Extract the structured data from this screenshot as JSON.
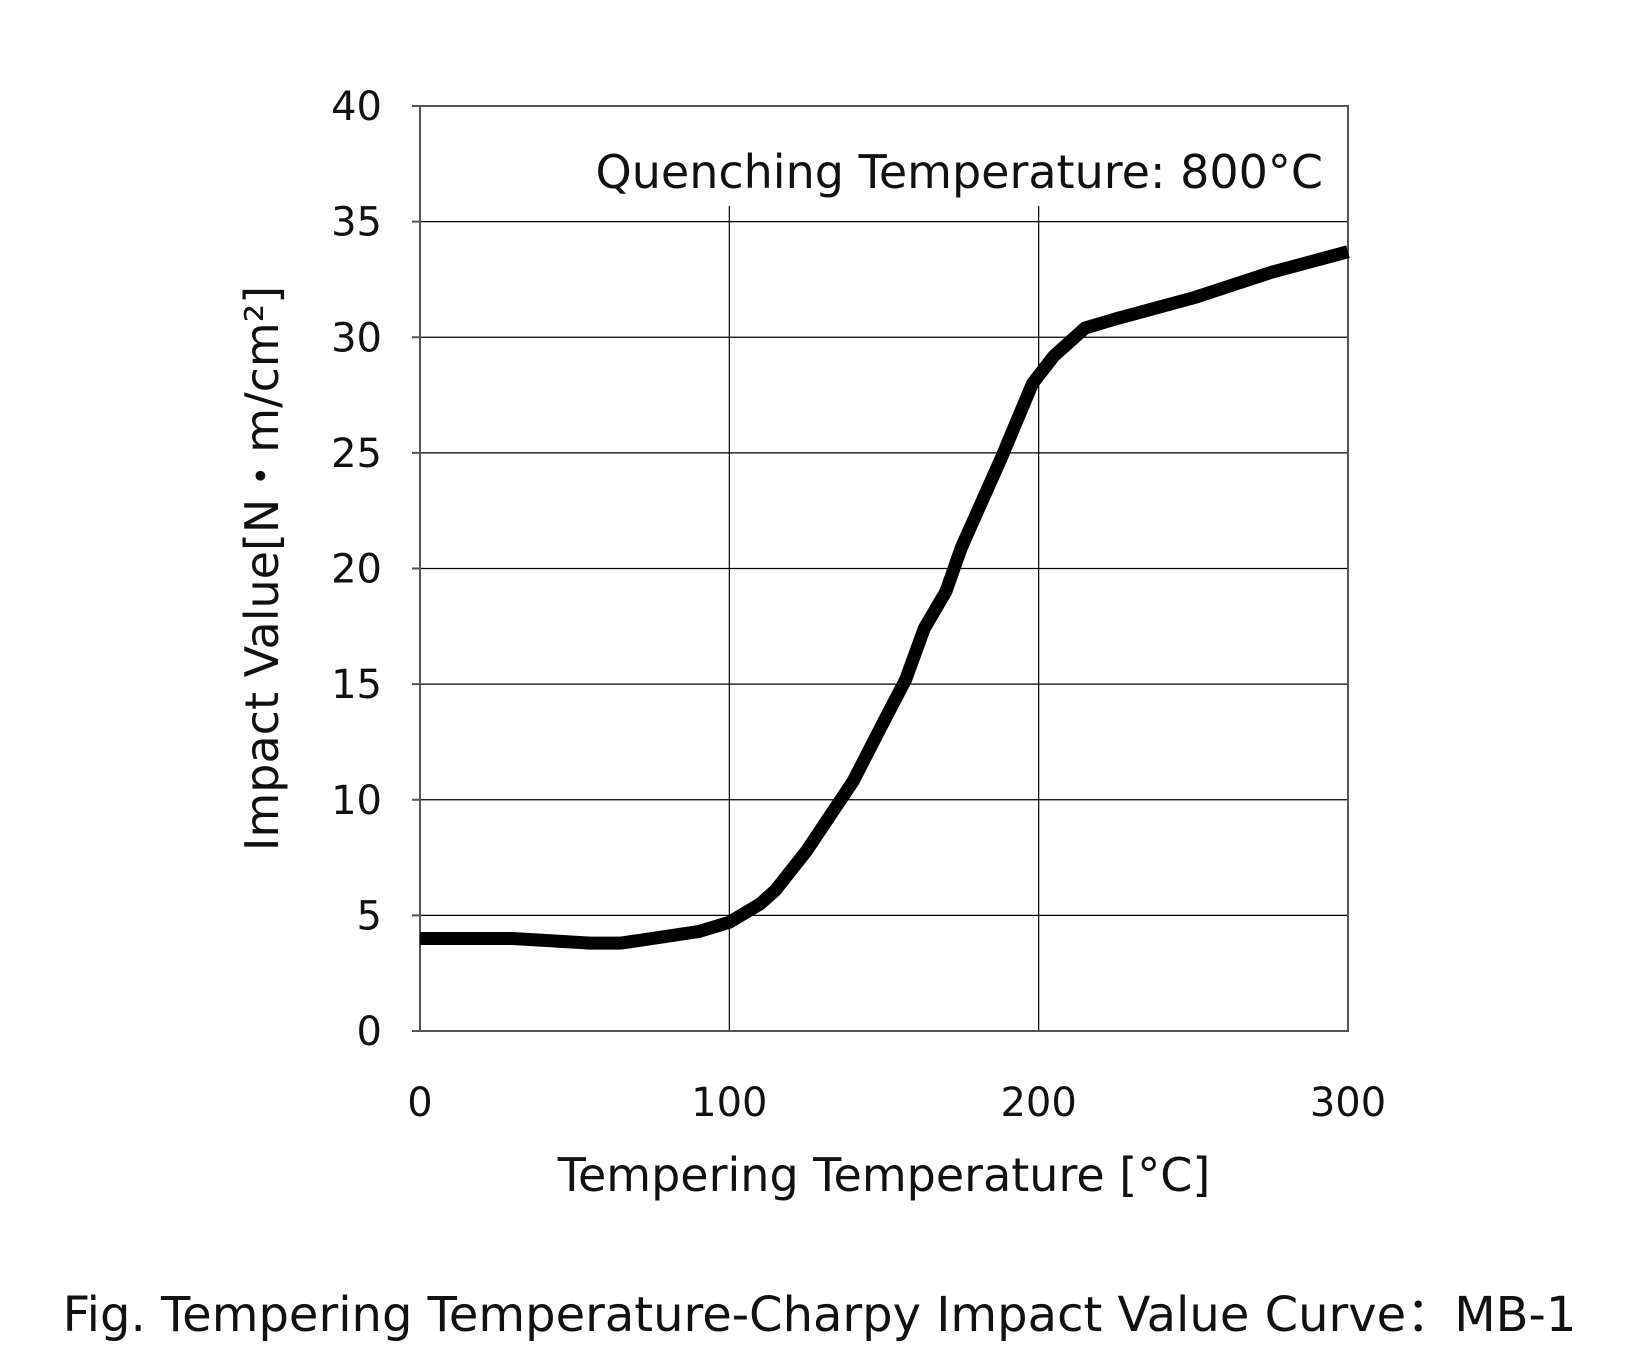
{
  "caption": "Fig. Tempering Temperature-Charpy Impact Value Curve：MB-1",
  "chart_data": {
    "type": "line",
    "title": "",
    "annotation": "Quenching Temperature: 800°C",
    "xlabel": "Tempering Temperature [°C]",
    "ylabel": "Impact Value[N・m/cm²]",
    "xlim": [
      0,
      300
    ],
    "ylim": [
      0,
      40
    ],
    "xticks": [
      0,
      100,
      200,
      300
    ],
    "yticks": [
      0,
      5,
      10,
      15,
      20,
      25,
      30,
      35,
      40
    ],
    "grid": true,
    "colors": {
      "line": "#000000",
      "grid": "#000000",
      "frame": "#555555"
    },
    "series": [
      {
        "x": [
          0,
          30,
          55,
          65,
          90,
          100,
          110,
          115,
          125,
          140,
          150,
          157,
          163,
          170,
          175,
          188,
          198,
          205,
          215,
          225,
          250,
          275,
          300
        ],
        "y": [
          4.0,
          4.0,
          3.8,
          3.8,
          4.3,
          4.7,
          5.5,
          6.1,
          7.8,
          10.8,
          13.4,
          15.2,
          17.4,
          19.0,
          20.9,
          24.8,
          28.0,
          29.2,
          30.4,
          30.8,
          31.7,
          32.8,
          33.7
        ]
      }
    ]
  }
}
